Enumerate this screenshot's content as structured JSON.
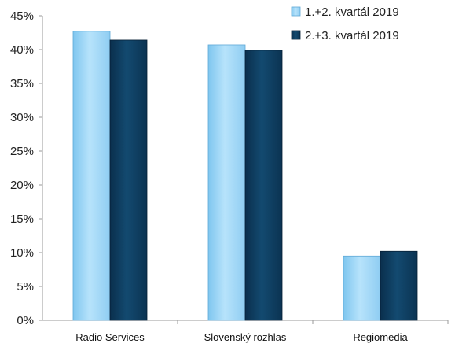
{
  "chart_data": {
    "type": "bar",
    "title": "",
    "xlabel": "",
    "ylabel": "",
    "categories": [
      "Radio Services",
      "Slovenský rozhlas",
      "Regiomedia"
    ],
    "series": [
      {
        "name": "1.+2. kvartál 2019",
        "values": [
          42.7,
          40.7,
          9.5
        ],
        "color": "#9dd5f5"
      },
      {
        "name": "2.+3. kvartál 2019",
        "values": [
          41.4,
          39.9,
          10.2
        ],
        "color": "#0d3a5c"
      }
    ],
    "ylim": [
      0,
      45
    ],
    "yticks": [
      "0%",
      "5%",
      "10%",
      "15%",
      "20%",
      "25%",
      "30%",
      "35%",
      "40%",
      "45%"
    ],
    "grid": false,
    "legend": "top-right"
  }
}
